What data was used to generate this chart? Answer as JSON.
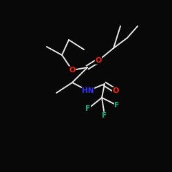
{
  "background_color": "#080808",
  "bond_color": "#e8e8e8",
  "bond_lw": 1.4,
  "atom_colors": {
    "O": "#ff2200",
    "NH": "#3333ff",
    "F": "#00bb88",
    "C": "#e8e8e8"
  },
  "figsize": [
    2.5,
    2.5
  ],
  "dpi": 100
}
